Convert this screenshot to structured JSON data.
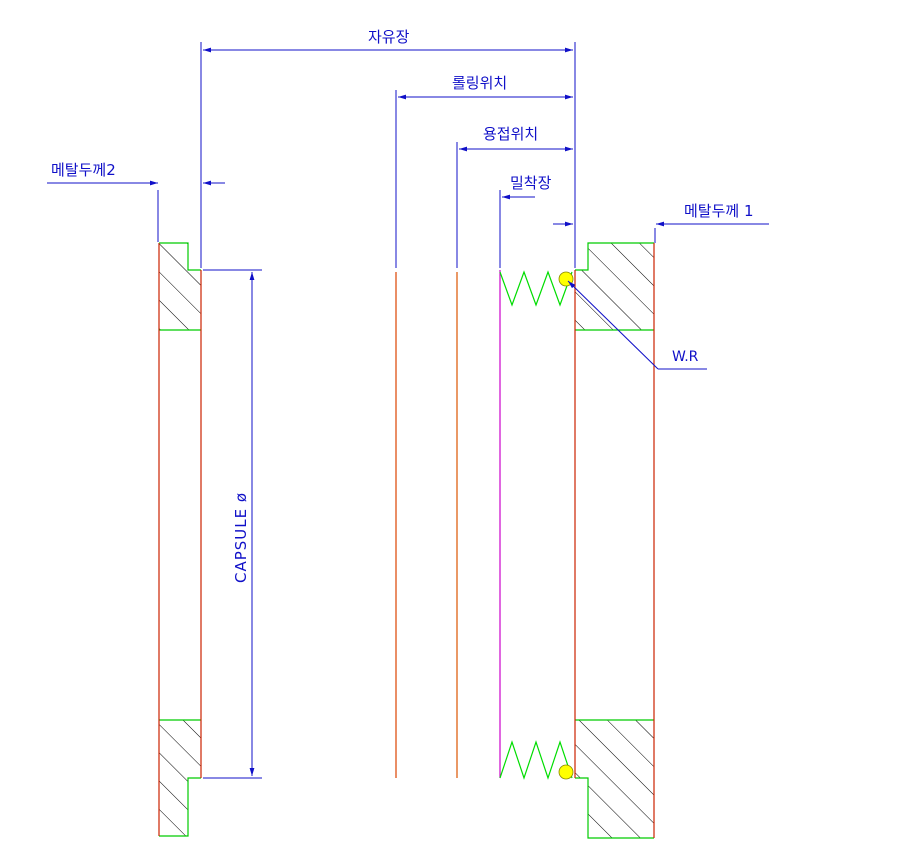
{
  "labels": {
    "free_length": "자유장",
    "rolling_position": "롤링위치",
    "welding_position": "용접위치",
    "contact_length": "밀착장",
    "metal_thickness_2": "메탈두께2",
    "metal_thickness_1": "메탈두께 1",
    "wire_ring": "W.R",
    "capsule_diameter": "CAPSULE ø"
  },
  "colors": {
    "dimension": "#1010c8",
    "outline": "#00cc00",
    "edge": "#cc2200",
    "rolling_line": "#dd4400",
    "welding_line": "#dd5500",
    "contact_line": "#cc00cc",
    "spring": "#00dd00",
    "hatch": "#000000",
    "ring": "#ffff00"
  }
}
